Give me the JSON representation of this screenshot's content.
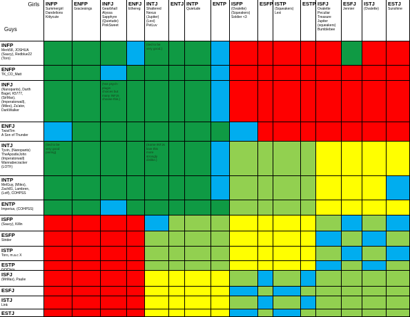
{
  "corner": {
    "girls_label": "Girls",
    "guys_label": "Guys"
  },
  "colors": {
    "G": "#0f9a44",
    "B": "#00adef",
    "R": "#fe0000",
    "L": "#92d050",
    "Y": "#ffff00"
  },
  "girls": [
    {
      "type": "INFP",
      "names": "Summergirl\nDandelions\nKittycute"
    },
    {
      "type": "ENFP",
      "names": "Graciesings"
    },
    {
      "type": "INFJ",
      "names": "Gearbhall\nAlyssa\nSapphyre\n(Quietude)\nPinkSweet"
    },
    {
      "type": "ENFJ",
      "names": "Ethereg"
    },
    {
      "type": "INTJ",
      "names": "Shattered\nNexus\n(Jupiter)\n(Lexi)\nPetLuv"
    },
    {
      "type": "ENTJ",
      "names": ""
    },
    {
      "type": "INTP",
      "names": "Quietude"
    },
    {
      "type": "ENTP",
      "names": ""
    },
    {
      "type": "ISFP",
      "names": "(Ovalette)\n(Squeakers)\nSoldier <3"
    },
    {
      "type": "ESFP",
      "names": ""
    },
    {
      "type": "ISTP",
      "names": "(Squeakers)\nLexi"
    },
    {
      "type": "ESTP",
      "names": ""
    },
    {
      "type": "ISFJ",
      "names": "Ovalette\nPeculiar\nTreasure\nJupiter\n(squeakers)\nBumblebee"
    },
    {
      "type": "ESFJ",
      "names": "Jennier"
    },
    {
      "type": "ISTJ",
      "names": "(Ovalette)"
    },
    {
      "type": "ESTJ",
      "names": "Sunshine"
    }
  ],
  "guys": [
    {
      "type": "INFP",
      "names": "Merk58, JOSHUA\n(Saucy), Redblue22\n(Toro)"
    },
    {
      "type": "ENFP",
      "names": "TK_CO_Matt"
    },
    {
      "type": "INFJ",
      "names": "(Nanopants), Darth\nBagel, K5777,\n(SirMax),\n(Imperatorwall),\n(Miles), Za'ator,\nDarkWalker"
    },
    {
      "type": "ENFJ",
      "names": "TwistTim\nA Son of Thunder"
    },
    {
      "type": "INTJ",
      "names": "Tyvin, (Nanopants)\nTheApostleJohn\n(Imperatorwall)\nWannabecracker\n(LOTF)"
    },
    {
      "type": "INTP",
      "names": "MelGuy, (Miles),\nZach81, Lambren,\n(Lotf), COHPSS"
    },
    {
      "type": "ENTP",
      "names": "Imperius, (COHPSS)"
    },
    {
      "type": "ISFP",
      "names": "(Saucy), Killin"
    },
    {
      "type": "ESFP",
      "names": "Strider"
    },
    {
      "type": "ISTP",
      "names": "Toro, m.a.c X"
    },
    {
      "type": "ESTP",
      "names": "GQChris"
    },
    {
      "type": "ISFJ",
      "names": "(MrMax), Paulie"
    },
    {
      "type": "ESFJ",
      "names": ""
    },
    {
      "type": "ISTJ",
      "names": "Link"
    },
    {
      "type": "ESTJ",
      "names": ""
    }
  ],
  "matrix": [
    "GGGBGGGBRRRRRGRR",
    "GGBGGGGBRRRRRRRR",
    "GGGGGGGBRRRRRRRR",
    "BGGGGGGGBRRRRRRR",
    "GGGGGGGBLLLLYYYY",
    "GGGGGGGBLLLLYYYB",
    "GGBGGGGGLLLLYYYY",
    "RRRRBLLLYYYYLBLB",
    "RRRRLLLLYYYYBLBL",
    "RRRRLLLLYYYYLBLB",
    "RRRRLLLLYYYYBLBL",
    "RRRRYYYYLBLBLLLL",
    "RRRRYYYYBLBLLLLL",
    "RRRRYYYYLBLBLLLL",
    "RRRRYYYYBLBLLLLL"
  ],
  "notes": [
    {
      "row": 0,
      "col": 4,
      "text": "(tied to be\nvery good.)"
    },
    {
      "row": 2,
      "col": 2,
      "text": "(Not psych-\nplugin\nchoices but\nmany INFJs\nchoose this.)"
    },
    {
      "row": 4,
      "col": 0,
      "text": "(tied to be\nvery good\npairing)"
    },
    {
      "row": 4,
      "col": 4,
      "text": "(Some INTJs\nlove this\nmore\nstrongly\ndislike.)"
    }
  ]
}
